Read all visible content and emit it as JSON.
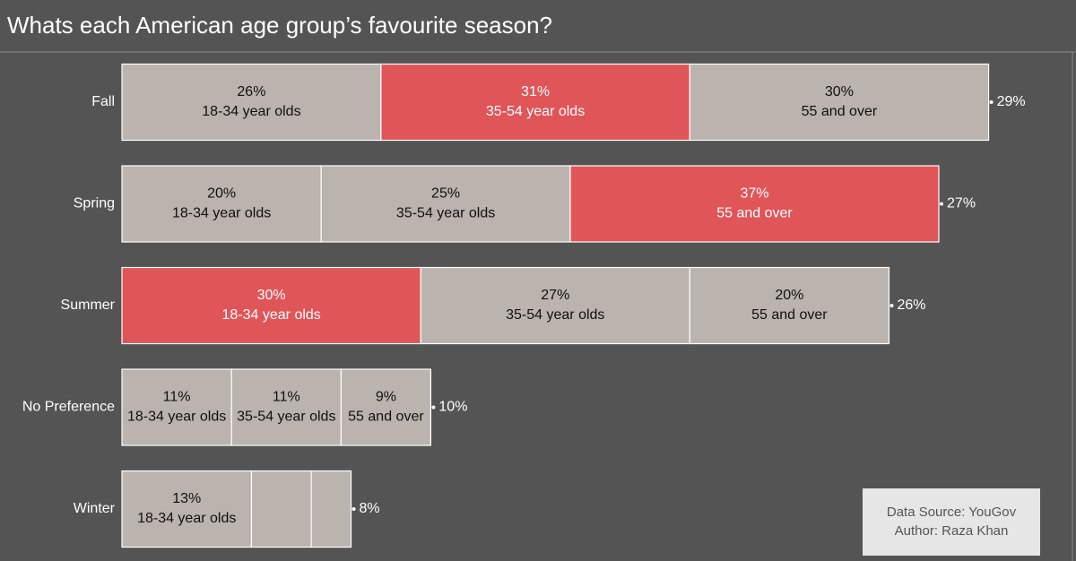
{
  "chart_data": {
    "type": "stacked-barh",
    "title": "Whats each American age group’s favourite season?",
    "categories": [
      "Fall",
      "Spring",
      "Summer",
      "No Preference",
      "Winter"
    ],
    "bar_color": "#bab3ae",
    "highlight_color": "#e05558",
    "series": [
      {
        "name": "18-34 year olds",
        "values": [
          26,
          20,
          30,
          11,
          13
        ],
        "value_labels": [
          "26%",
          "20%",
          "30%",
          "11%",
          "13%"
        ],
        "highlight": [
          false,
          false,
          true,
          false,
          false
        ]
      },
      {
        "name": "35-54 year olds",
        "values": [
          31,
          25,
          27,
          11,
          6
        ],
        "value_labels": [
          "31%",
          "25%",
          "27%",
          "11%",
          null
        ],
        "highlight": [
          true,
          false,
          false,
          false,
          false
        ]
      },
      {
        "name": "55 and over",
        "values": [
          30,
          37,
          20,
          9,
          4
        ],
        "value_labels": [
          "30%",
          "37%",
          "20%",
          "9%",
          null
        ],
        "highlight": [
          false,
          true,
          false,
          false,
          false
        ]
      }
    ],
    "totals": {
      "values": [
        29,
        27,
        26,
        10,
        8
      ],
      "value_labels": [
        "29%",
        "27%",
        "26%",
        "10%",
        "8%"
      ]
    },
    "notes": [
      "Data Source: YouGov",
      "Author: Raza Khan"
    ]
  }
}
